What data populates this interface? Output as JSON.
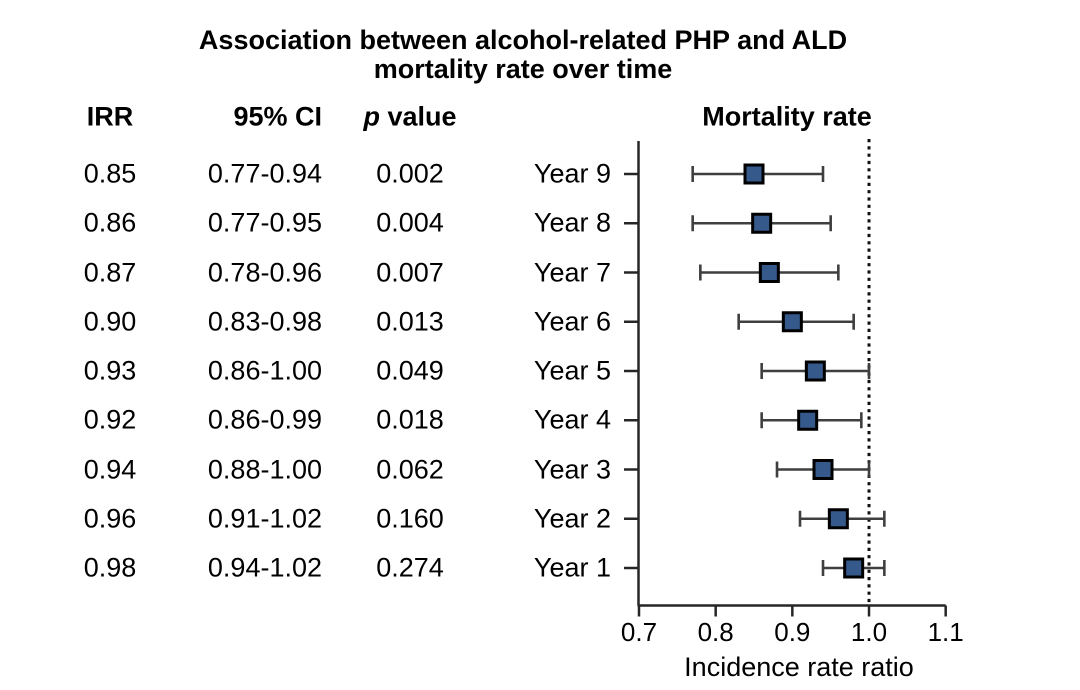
{
  "figure": {
    "title_line1": "Association between alcohol-related PHP and ALD",
    "title_line2": "mortality rate over time",
    "plot_header": "Mortality rate",
    "x_axis_label": "Incidence rate ratio"
  },
  "table": {
    "headers": {
      "irr": "IRR",
      "ci": "95% CI",
      "p_symbol": "p",
      "p_rest": " value"
    }
  },
  "chart_data": {
    "type": "forest",
    "title": "Association between alcohol-related PHP and ALD mortality rate over time",
    "plot_title": "Mortality rate",
    "xlabel": "Incidence rate ratio",
    "xlim": [
      0.7,
      1.1
    ],
    "xticks": [
      "0.7",
      "0.8",
      "0.9",
      "1.0",
      "1.1"
    ],
    "reference_line": 1.0,
    "grid": false,
    "legend": false,
    "rows": [
      {
        "label": "Year 9",
        "irr": 0.85,
        "ci_low": 0.77,
        "ci_high": 0.94,
        "irr_text": "0.85",
        "ci_text": "0.77-0.94",
        "p_text": "0.002"
      },
      {
        "label": "Year 8",
        "irr": 0.86,
        "ci_low": 0.77,
        "ci_high": 0.95,
        "irr_text": "0.86",
        "ci_text": "0.77-0.95",
        "p_text": "0.004"
      },
      {
        "label": "Year 7",
        "irr": 0.87,
        "ci_low": 0.78,
        "ci_high": 0.96,
        "irr_text": "0.87",
        "ci_text": "0.78-0.96",
        "p_text": "0.007"
      },
      {
        "label": "Year 6",
        "irr": 0.9,
        "ci_low": 0.83,
        "ci_high": 0.98,
        "irr_text": "0.90",
        "ci_text": "0.83-0.98",
        "p_text": "0.013"
      },
      {
        "label": "Year 5",
        "irr": 0.93,
        "ci_low": 0.86,
        "ci_high": 1.0,
        "irr_text": "0.93",
        "ci_text": "0.86-1.00",
        "p_text": "0.049"
      },
      {
        "label": "Year 4",
        "irr": 0.92,
        "ci_low": 0.86,
        "ci_high": 0.99,
        "irr_text": "0.92",
        "ci_text": "0.86-0.99",
        "p_text": "0.018"
      },
      {
        "label": "Year 3",
        "irr": 0.94,
        "ci_low": 0.88,
        "ci_high": 1.0,
        "irr_text": "0.94",
        "ci_text": "0.88-1.00",
        "p_text": "0.062"
      },
      {
        "label": "Year 2",
        "irr": 0.96,
        "ci_low": 0.91,
        "ci_high": 1.02,
        "irr_text": "0.96",
        "ci_text": "0.91-1.02",
        "p_text": "0.160"
      },
      {
        "label": "Year 1",
        "irr": 0.98,
        "ci_low": 0.94,
        "ci_high": 1.02,
        "irr_text": "0.98",
        "ci_text": "0.94-1.02",
        "p_text": "0.274"
      }
    ],
    "colors": {
      "marker_fill": "#36598C",
      "marker_border": "#000000",
      "error_bar": "#3F3F3F",
      "axis": "#262626",
      "reference_line": "#111111",
      "text": "#000000"
    }
  }
}
